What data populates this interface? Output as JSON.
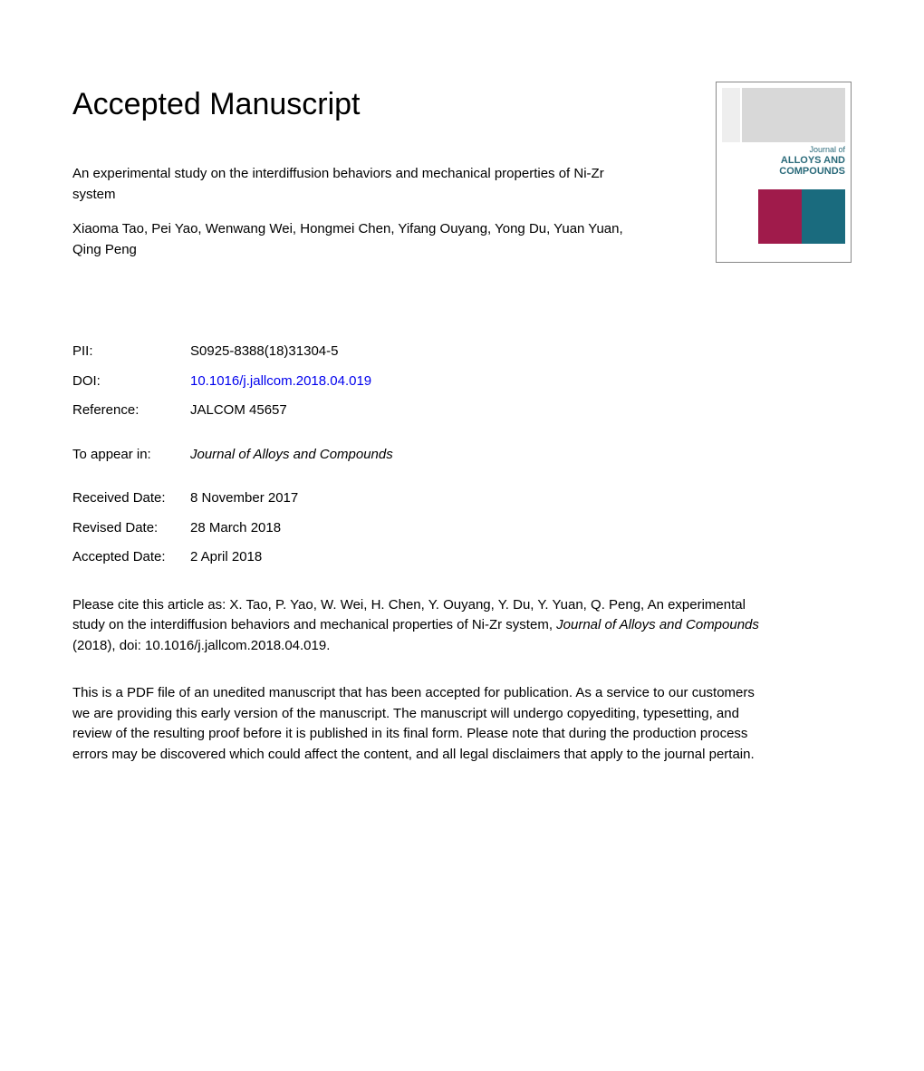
{
  "heading": "Accepted Manuscript",
  "article_title": "An experimental study on the interdiffusion behaviors and mechanical properties of Ni-Zr system",
  "authors": "Xiaoma Tao, Pei Yao, Wenwang Wei, Hongmei Chen, Yifang Ouyang, Yong Du, Yuan Yuan, Qing Peng",
  "cover": {
    "journal_prefix": "Journal of",
    "journal_main": "ALLOYS AND COMPOUNDS",
    "block_a_color": "#a01b4b",
    "block_b_color": "#1a6b7e"
  },
  "meta": {
    "pii_label": "PII:",
    "pii_value": "S0925-8388(18)31304-5",
    "doi_label": "DOI:",
    "doi_value": "10.1016/j.jallcom.2018.04.019",
    "ref_label": "Reference:",
    "ref_value": "JALCOM 45657",
    "appear_label": "To appear in:",
    "appear_value": "Journal of Alloys and Compounds",
    "received_label": "Received Date:",
    "received_value": "8 November 2017",
    "revised_label": "Revised Date:",
    "revised_value": "28 March 2018",
    "accepted_label": "Accepted Date:",
    "accepted_value": "2 April 2018"
  },
  "citation": {
    "prefix": "Please cite this article as: X. Tao, P. Yao, W. Wei, H. Chen, Y. Ouyang, Y. Du, Y. Yuan, Q. Peng, An experimental study on the interdiffusion behaviors and mechanical properties of Ni-Zr system, ",
    "journal": "Journal of Alloys and Compounds",
    "suffix": " (2018), doi: 10.1016/j.jallcom.2018.04.019."
  },
  "disclaimer": "This is a PDF file of an unedited manuscript that has been accepted for publication. As a service to our customers we are providing this early version of the manuscript. The manuscript will undergo copyediting, typesetting, and review of the resulting proof before it is published in its final form. Please note that during the production process errors may be discovered which could affect the content, and all legal disclaimers that apply to the journal pertain."
}
